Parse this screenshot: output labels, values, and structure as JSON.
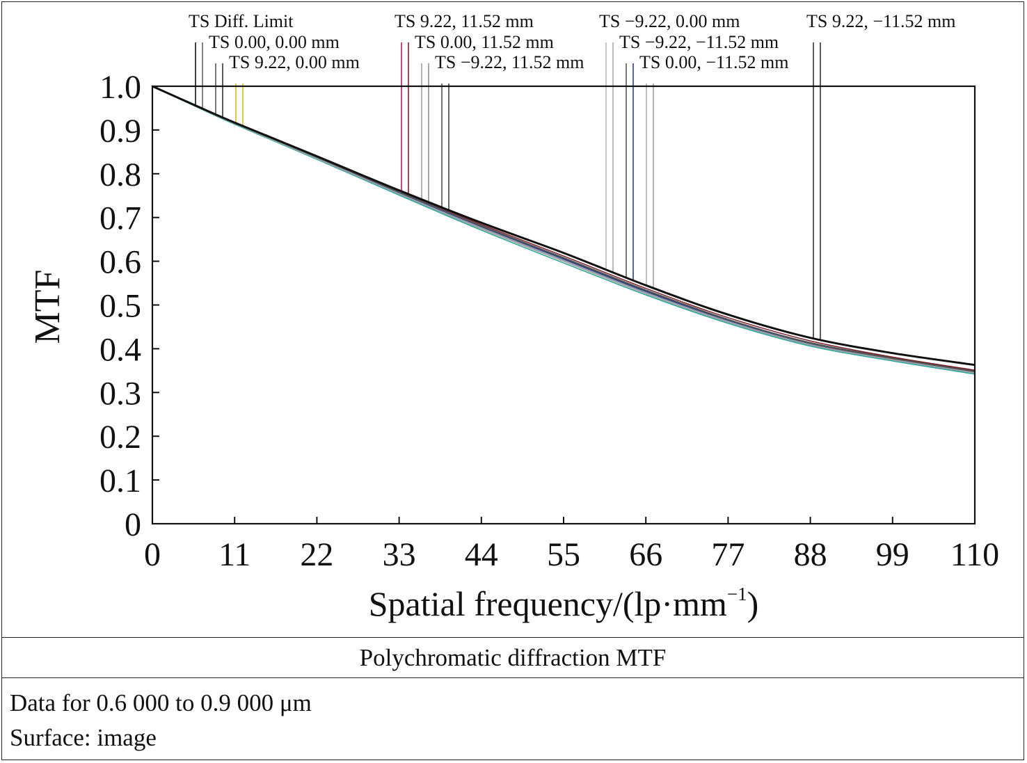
{
  "chart_data": {
    "type": "line",
    "title": "Polychromatic diffraction MTF",
    "xlabel": "Spatial frequency/(lp·mm",
    "xlabel_sup": "−1",
    "xlabel_close": ")",
    "ylabel": "MTF",
    "xlim": [
      0,
      110
    ],
    "ylim": [
      0,
      1.0
    ],
    "x_ticks": [
      0,
      11,
      22,
      33,
      44,
      55,
      66,
      77,
      88,
      99,
      110
    ],
    "x_tick_labels": [
      "0",
      "11",
      "22",
      "33",
      "44",
      "55",
      "66",
      "77",
      "88",
      "99",
      "110"
    ],
    "y_ticks": [
      0,
      0.1,
      0.2,
      0.3,
      0.4,
      0.5,
      0.6,
      0.7,
      0.8,
      0.9,
      1.0
    ],
    "y_tick_labels": [
      "0",
      "0.1",
      "0.2",
      "0.3",
      "0.4",
      "0.5",
      "0.6",
      "0.7",
      "0.8",
      "0.9",
      "1.0"
    ],
    "grid": false,
    "x": [
      0,
      5.5,
      11,
      22,
      33,
      44,
      55,
      66,
      77,
      88,
      99,
      110
    ],
    "series": [
      {
        "name": "TS Diff. Limit",
        "color": "#111111",
        "width": 3,
        "values": [
          1.0,
          0.958,
          0.917,
          0.84,
          0.762,
          0.688,
          0.619,
          0.545,
          0.478,
          0.425,
          0.39,
          0.363
        ]
      },
      {
        "name": "TS 0.00, 0.00 mm",
        "color": "#555555",
        "width": 2,
        "values": [
          1.0,
          0.957,
          0.916,
          0.838,
          0.758,
          0.681,
          0.608,
          0.534,
          0.467,
          0.413,
          0.378,
          0.348
        ]
      },
      {
        "name": "TS 9.22, 0.00 mm",
        "color": "#9aa0a8",
        "width": 2,
        "values": [
          1.0,
          0.957,
          0.915,
          0.835,
          0.754,
          0.676,
          0.602,
          0.528,
          0.462,
          0.409,
          0.375,
          0.345
        ]
      },
      {
        "name": "TS 9.22, 11.52 mm",
        "color": "#7a1f2a",
        "width": 1.5,
        "values": [
          1.0,
          0.957,
          0.916,
          0.838,
          0.76,
          0.684,
          0.612,
          0.538,
          0.471,
          0.418,
          0.381,
          0.351
        ]
      },
      {
        "name": "TS 0.00, 11.52 mm",
        "color": "#2c3e8c",
        "width": 1.5,
        "values": [
          1.0,
          0.957,
          0.915,
          0.836,
          0.756,
          0.679,
          0.605,
          0.531,
          0.465,
          0.412,
          0.377,
          0.347
        ]
      },
      {
        "name": "TS −9.22, 11.52 mm",
        "color": "#2aa89a",
        "width": 1.5,
        "values": [
          1.0,
          0.956,
          0.913,
          0.833,
          0.751,
          0.671,
          0.596,
          0.523,
          0.458,
          0.406,
          0.372,
          0.342
        ]
      },
      {
        "name": "TS −9.22, 0.00 mm",
        "color": "#b0b0b0",
        "width": 2,
        "values": [
          1.0,
          0.957,
          0.914,
          0.834,
          0.753,
          0.674,
          0.6,
          0.526,
          0.46,
          0.408,
          0.374,
          0.344
        ]
      },
      {
        "name": "TS −9.22, −11.52 mm",
        "color": "#444444",
        "width": 1.5,
        "values": [
          1.0,
          0.957,
          0.916,
          0.837,
          0.757,
          0.68,
          0.607,
          0.533,
          0.466,
          0.414,
          0.379,
          0.349
        ]
      },
      {
        "name": "TS 0.00, −11.52 mm",
        "color": "#8a8a8a",
        "width": 1.5,
        "values": [
          1.0,
          0.957,
          0.915,
          0.835,
          0.755,
          0.677,
          0.603,
          0.529,
          0.463,
          0.41,
          0.376,
          0.346
        ]
      },
      {
        "name": "TS 9.22, −11.52 mm",
        "color": "#333333",
        "width": 1.5,
        "values": [
          1.0,
          0.957,
          0.915,
          0.836,
          0.757,
          0.68,
          0.606,
          0.532,
          0.466,
          0.414,
          0.379,
          0.349
        ]
      }
    ],
    "legend": [
      {
        "text": "TS Diff. Limit",
        "row": 0,
        "col": 0,
        "colors": [
          "#111111",
          "#666666"
        ]
      },
      {
        "text": "TS 0.00, 0.00 mm",
        "row": 1,
        "col": 0,
        "colors": [
          "#555555",
          "#333333"
        ]
      },
      {
        "text": "TS 9.22, 0.00 mm",
        "row": 2,
        "col": 0,
        "colors": [
          "#d4c21a",
          "#d4c21a"
        ]
      },
      {
        "text": "TS 9.22, 11.52 mm",
        "row": 0,
        "col": 1,
        "colors": [
          "#c2185b",
          "#8b1a2b"
        ]
      },
      {
        "text": "TS 0.00, 11.52 mm",
        "row": 1,
        "col": 1,
        "colors": [
          "#a0a0a0",
          "#909090"
        ]
      },
      {
        "text": "TS −9.22, 11.52 mm",
        "row": 2,
        "col": 1,
        "colors": [
          "#555555",
          "#444444"
        ]
      },
      {
        "text": "TS −9.22, 0.00 mm",
        "row": 0,
        "col": 2,
        "colors": [
          "#b8b8b8",
          "#a8a8a8"
        ]
      },
      {
        "text": "TS −9.22, −11.52 mm",
        "row": 1,
        "col": 2,
        "colors": [
          "#555555",
          "#2c3e8c"
        ]
      },
      {
        "text": "TS 0.00, −11.52 mm",
        "row": 2,
        "col": 2,
        "colors": [
          "#b0b0b0",
          "#a0a0a0"
        ]
      },
      {
        "text": "TS 9.22, −11.52 mm",
        "row": 0,
        "col": 3,
        "colors": [
          "#333333",
          "#333333"
        ]
      }
    ]
  },
  "footer": {
    "title": "Polychromatic diffraction MTF",
    "data_range": "Data for 0.6 000 to 0.9 000 μm",
    "surface": "Surface: image"
  }
}
